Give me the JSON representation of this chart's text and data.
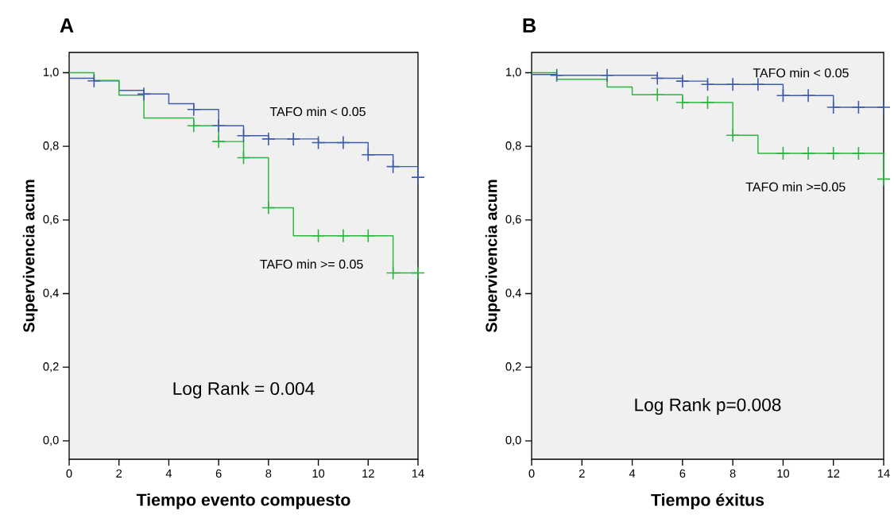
{
  "chart_data": [
    {
      "type": "step",
      "title": "A",
      "xlabel": "Tiempo evento compuesto",
      "ylabel": "Supervivencia acum",
      "xlim": [
        0,
        14
      ],
      "ylim": [
        -0.05,
        1.055
      ],
      "xticks": [
        0,
        2,
        4,
        6,
        8,
        10,
        12,
        14
      ],
      "yticks": [
        {
          "value": 0,
          "label": "0,0"
        },
        {
          "value": 0.2,
          "label": "0,2"
        },
        {
          "value": 0.4,
          "label": "0,4"
        },
        {
          "value": 0.6,
          "label": "0,6"
        },
        {
          "value": 0.8,
          "label": "0,8"
        },
        {
          "value": 1,
          "label": "1,0"
        }
      ],
      "grid": false,
      "series": [
        {
          "color": "#3f5bad",
          "x": [
            0,
            1,
            2,
            3,
            4,
            5,
            6,
            7,
            8,
            10,
            12,
            13,
            14
          ],
          "values": [
            0.985,
            0.978,
            0.952,
            0.942,
            0.916,
            0.9,
            0.856,
            0.829,
            0.82,
            0.81,
            0.777,
            0.745,
            0.716
          ]
        },
        {
          "color": "#2db53f",
          "x": [
            0,
            1,
            2,
            3,
            5,
            6,
            7,
            8,
            9,
            13,
            14
          ],
          "values": [
            1.0,
            0.979,
            0.939,
            0.877,
            0.856,
            0.813,
            0.769,
            0.633,
            0.557,
            0.456,
            0.456
          ]
        },
        {
          "type": "scatter",
          "marker": "cross",
          "color": "#3f5bad",
          "x": [
            1,
            3,
            5,
            6,
            7,
            8,
            9,
            10,
            11,
            12,
            13,
            14
          ],
          "values": [
            0.978,
            0.942,
            0.9,
            0.856,
            0.829,
            0.82,
            0.82,
            0.81,
            0.81,
            0.777,
            0.745,
            0.716
          ]
        },
        {
          "type": "scatter",
          "marker": "cross",
          "color": "#2db53f",
          "x": [
            5,
            6,
            7,
            8,
            10,
            11,
            12,
            13,
            14
          ],
          "values": [
            0.856,
            0.813,
            0.769,
            0.633,
            0.557,
            0.557,
            0.557,
            0.456,
            0.456
          ]
        }
      ],
      "annotations": [
        "TAFO min < 0.05",
        "TAFO min >= 0.05",
        "Log Rank = 0.004"
      ]
    },
    {
      "type": "step",
      "title": "B",
      "xlabel": "Tiempo éxitus",
      "ylabel": "Supervivencia acum",
      "xlim": [
        0,
        14
      ],
      "ylim": [
        -0.05,
        1.055
      ],
      "xticks": [
        0,
        2,
        4,
        6,
        8,
        10,
        12,
        14
      ],
      "yticks": [
        {
          "value": 0,
          "label": "0,0"
        },
        {
          "value": 0.2,
          "label": "0,2"
        },
        {
          "value": 0.4,
          "label": "0,4"
        },
        {
          "value": 0.6,
          "label": "0,6"
        },
        {
          "value": 0.8,
          "label": "0,8"
        },
        {
          "value": 1,
          "label": "1,0"
        }
      ],
      "grid": false,
      "series": [
        {
          "color": "#3f5bad",
          "x": [
            0,
            1,
            5,
            6,
            7,
            10,
            12,
            14
          ],
          "values": [
            0.995,
            0.993,
            0.985,
            0.977,
            0.968,
            0.938,
            0.906,
            0.906
          ]
        },
        {
          "color": "#2db53f",
          "x": [
            0,
            1,
            3,
            4,
            6,
            8,
            9,
            14
          ],
          "values": [
            1.0,
            0.982,
            0.961,
            0.94,
            0.919,
            0.83,
            0.781,
            0.711
          ]
        },
        {
          "type": "scatter",
          "marker": "cross",
          "color": "#3f5bad",
          "x": [
            1,
            3,
            5,
            6,
            7,
            8,
            9,
            10,
            11,
            12,
            13,
            14
          ],
          "values": [
            0.993,
            0.993,
            0.985,
            0.977,
            0.968,
            0.968,
            0.968,
            0.938,
            0.938,
            0.906,
            0.906,
            0.906
          ]
        },
        {
          "type": "scatter",
          "marker": "cross",
          "color": "#2db53f",
          "x": [
            5,
            6,
            7,
            8,
            10,
            11,
            12,
            13,
            14
          ],
          "values": [
            0.94,
            0.919,
            0.919,
            0.83,
            0.781,
            0.781,
            0.781,
            0.781,
            0.711
          ]
        }
      ],
      "annotations": [
        "TAFO min < 0.05",
        "TAFO min >=0.05",
        "Log Rank p=0.008"
      ]
    }
  ]
}
